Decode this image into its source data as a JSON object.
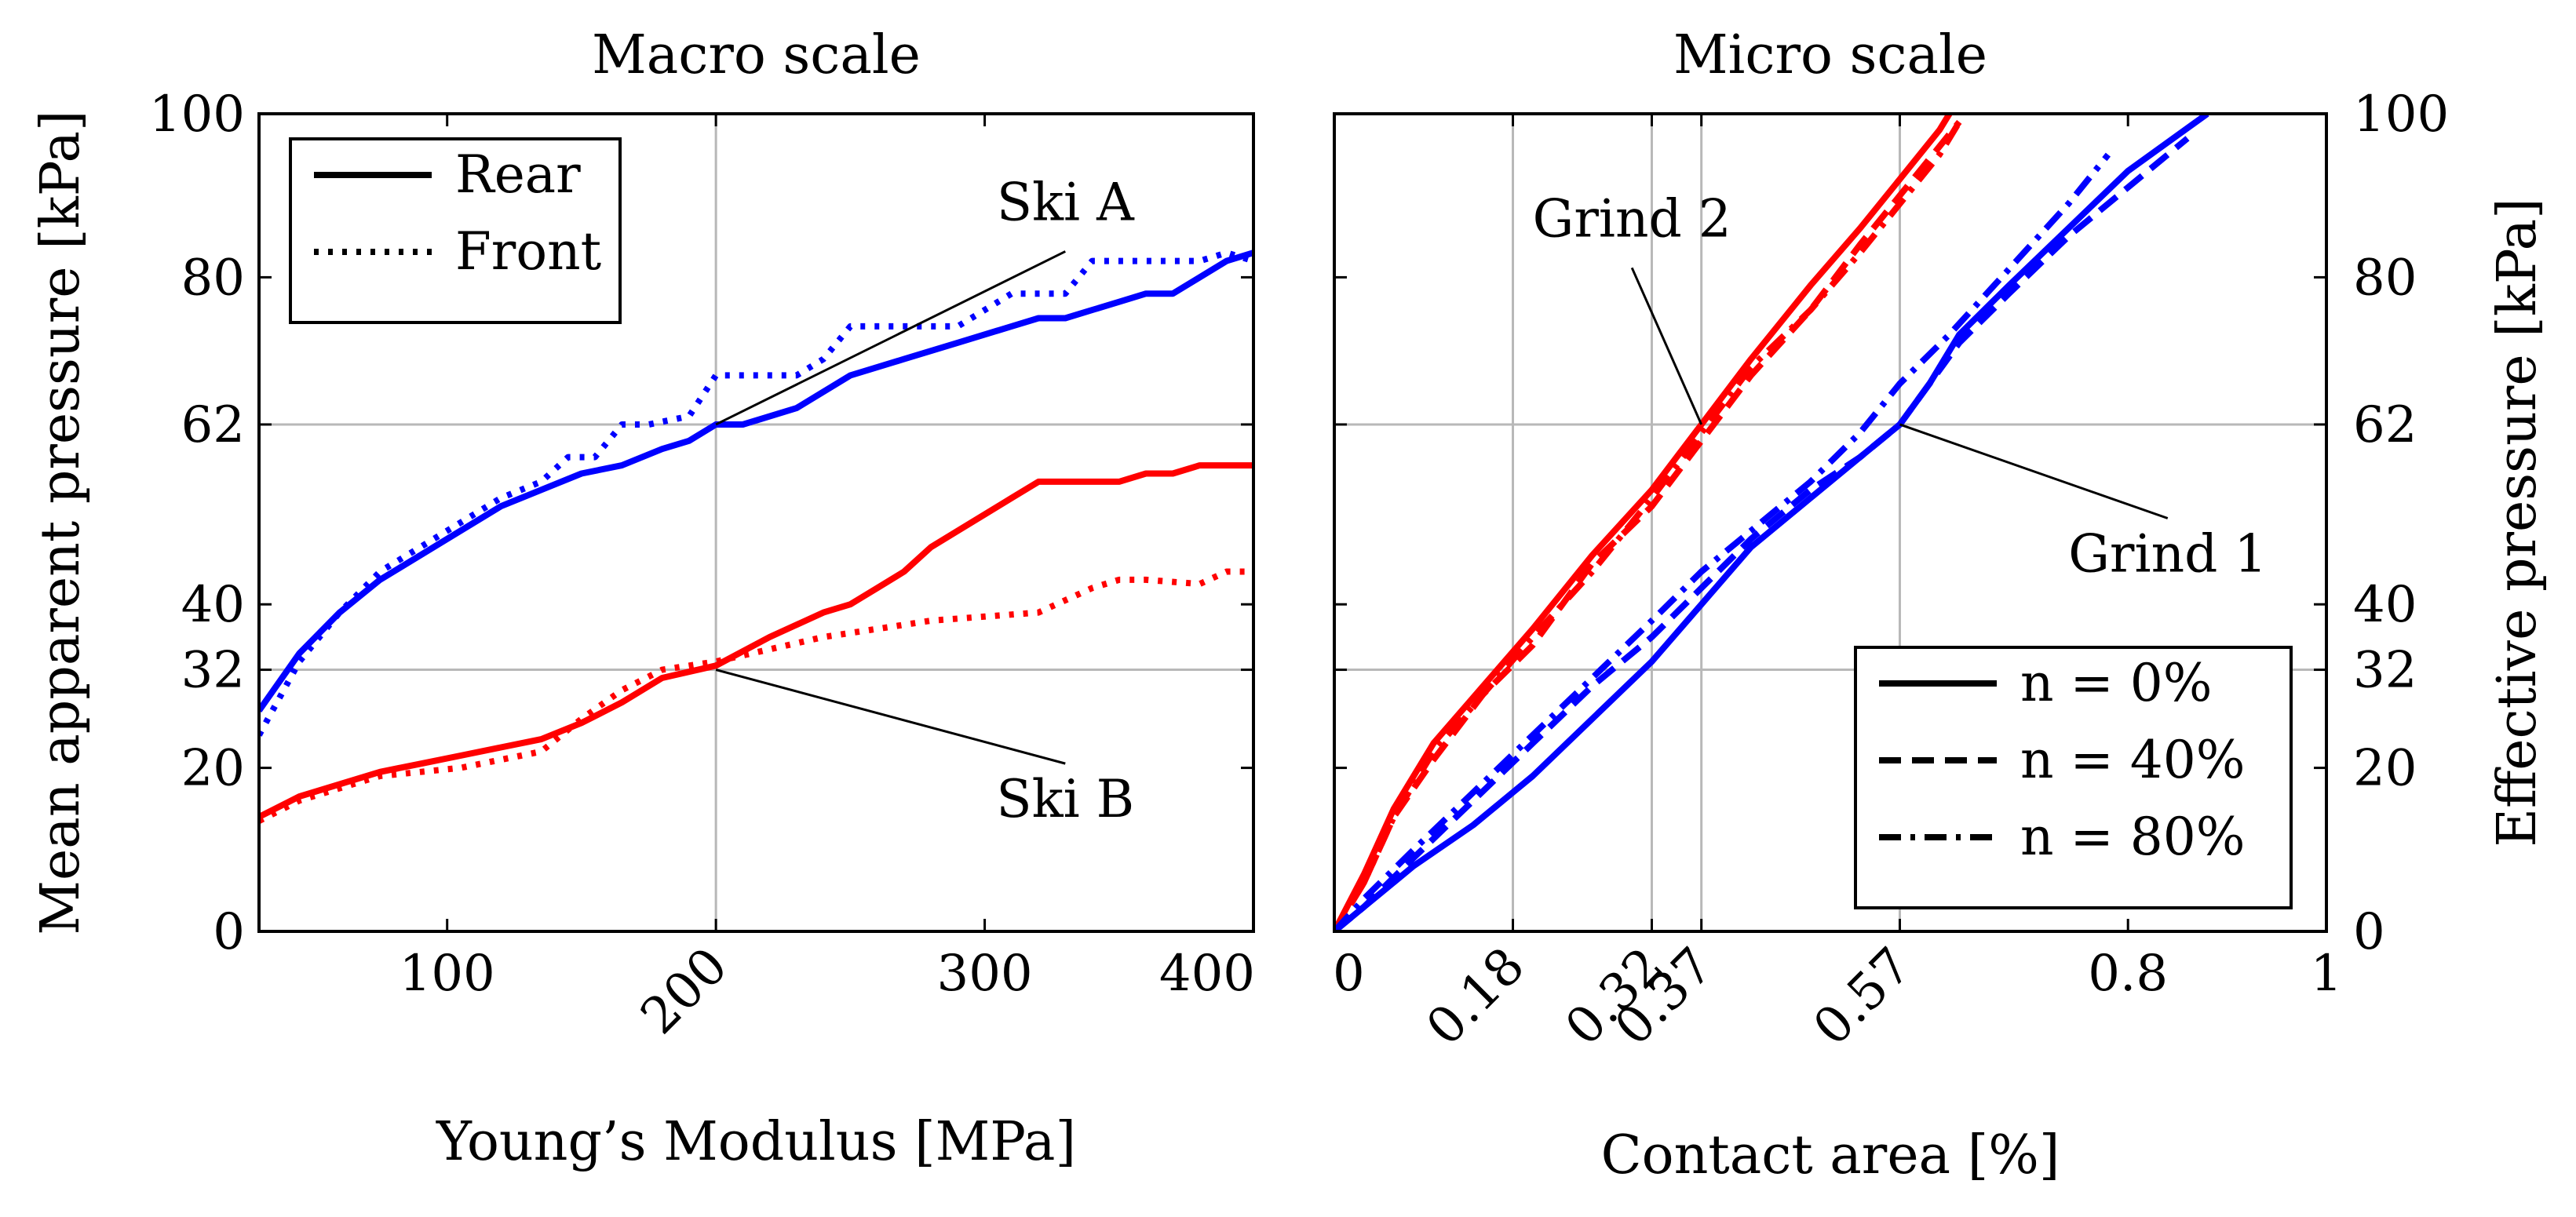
{
  "chart_data": [
    {
      "type": "line",
      "title": "Macro scale",
      "xlabel": "Young’s Modulus [MPa]",
      "ylabel": "Mean apparent pressure [kPa]",
      "xlim": [
        30,
        400
      ],
      "ylim": [
        0,
        100
      ],
      "xticks": [
        100,
        200,
        300,
        400
      ],
      "xtick_labels": [
        "100",
        "200",
        "300",
        "400"
      ],
      "yticks": [
        0,
        20,
        32,
        40,
        62,
        80,
        100
      ],
      "ytick_labels": [
        "0",
        "20",
        "32",
        "40",
        "62",
        "80",
        "100"
      ],
      "grid_x": [
        200
      ],
      "grid_y": [
        32,
        62
      ],
      "legend": {
        "position": "top-left",
        "entries": [
          {
            "label": "Rear",
            "style": "solid"
          },
          {
            "label": "Front",
            "style": "dotted"
          }
        ]
      },
      "annotations": [
        {
          "text": "Ski A",
          "x": 330,
          "y": 87,
          "point": [
            200,
            62
          ]
        },
        {
          "text": "Ski B",
          "x": 330,
          "y": 14,
          "point": [
            200,
            32
          ]
        }
      ],
      "series": [
        {
          "name": "Ski A Rear",
          "color": "#0000ff",
          "style": "solid",
          "x": [
            30,
            45,
            60,
            75,
            90,
            105,
            120,
            135,
            150,
            165,
            180,
            190,
            200,
            210,
            230,
            250,
            270,
            290,
            310,
            320,
            330,
            340,
            350,
            360,
            370,
            380,
            390,
            400
          ],
          "y": [
            27,
            34,
            39,
            43,
            46,
            49,
            52,
            54,
            56,
            57,
            59,
            60,
            62,
            62,
            64,
            68,
            70,
            72,
            74,
            75,
            75,
            76,
            77,
            78,
            78,
            80,
            82,
            83
          ]
        },
        {
          "name": "Ski A Front",
          "color": "#0000ff",
          "style": "dotted",
          "x": [
            30,
            45,
            60,
            75,
            90,
            105,
            120,
            135,
            145,
            155,
            165,
            175,
            190,
            200,
            210,
            230,
            240,
            250,
            270,
            290,
            310,
            320,
            330,
            340,
            350,
            360,
            380,
            390,
            400
          ],
          "y": [
            24,
            33,
            39,
            44,
            47,
            50,
            53,
            55,
            58,
            58,
            62,
            62,
            63,
            68,
            68,
            68,
            70,
            74,
            74,
            74,
            78,
            78,
            78,
            82,
            82,
            82,
            82,
            83,
            82
          ]
        },
        {
          "name": "Ski B Rear",
          "color": "#ff0000",
          "style": "solid",
          "x": [
            30,
            45,
            60,
            75,
            90,
            105,
            120,
            135,
            150,
            165,
            180,
            200,
            220,
            240,
            250,
            260,
            270,
            280,
            290,
            300,
            310,
            320,
            330,
            340,
            350,
            360,
            370,
            380,
            390,
            400
          ],
          "y": [
            14,
            16.5,
            18,
            19.5,
            20.5,
            21.5,
            22.5,
            23.5,
            25.5,
            28,
            31,
            32.5,
            36,
            39,
            40,
            42,
            44,
            47,
            49,
            51,
            53,
            55,
            55,
            55,
            55,
            56,
            56,
            57,
            57,
            57
          ]
        },
        {
          "name": "Ski B Front",
          "color": "#ff0000",
          "style": "dotted",
          "x": [
            30,
            45,
            60,
            75,
            90,
            105,
            120,
            135,
            150,
            165,
            180,
            200,
            220,
            240,
            260,
            280,
            300,
            320,
            340,
            350,
            360,
            380,
            390,
            400
          ],
          "y": [
            13.5,
            16,
            17.5,
            19,
            19.5,
            20,
            21,
            22,
            26,
            29.5,
            32,
            33,
            34.5,
            36,
            37,
            38,
            38.5,
            39,
            42,
            43,
            43,
            42.5,
            44,
            44
          ]
        }
      ]
    },
    {
      "type": "line",
      "title": "Micro scale",
      "xlabel": "Contact area [%]",
      "ylabel": "Effective pressure [kPa]",
      "xlim": [
        0,
        1
      ],
      "ylim": [
        0,
        100
      ],
      "xticks": [
        0,
        0.18,
        0.32,
        0.37,
        0.57,
        0.8,
        1
      ],
      "xtick_labels": [
        "0",
        "0.18",
        "0.32",
        "0.37",
        "0.57",
        "0.8",
        "1"
      ],
      "yticks": [
        0,
        20,
        32,
        40,
        62,
        80,
        100
      ],
      "ytick_labels": [
        "0",
        "20",
        "32",
        "40",
        "62",
        "80",
        "100"
      ],
      "grid_x": [
        0.18,
        0.32,
        0.37,
        0.57
      ],
      "grid_y": [
        32,
        62
      ],
      "legend": {
        "position": "bottom-right",
        "entries": [
          {
            "label": "n = 0%",
            "style": "solid"
          },
          {
            "label": "n = 40%",
            "style": "dashed"
          },
          {
            "label": "n = 80%",
            "style": "dashdot"
          }
        ]
      },
      "annotations": [
        {
          "text": "Grind 2",
          "x": 0.3,
          "y": 85,
          "point": [
            0.37,
            62
          ]
        },
        {
          "text": "Grind 1",
          "x": 0.84,
          "y": 44,
          "point": [
            0.57,
            62
          ]
        }
      ],
      "series": [
        {
          "name": "Grind 2, n = 0%",
          "color": "#ff0000",
          "style": "solid",
          "x": [
            0,
            0.03,
            0.06,
            0.1,
            0.15,
            0.2,
            0.26,
            0.32,
            0.37,
            0.42,
            0.48,
            0.53,
            0.57,
            0.61,
            0.62
          ],
          "y": [
            0,
            7,
            15,
            23,
            30,
            37,
            46,
            54,
            62,
            70,
            79,
            86,
            92,
            98,
            100
          ]
        },
        {
          "name": "Grind 2, n = 40%",
          "color": "#ff0000",
          "style": "dashed",
          "x": [
            0,
            0.03,
            0.06,
            0.1,
            0.15,
            0.2,
            0.26,
            0.32,
            0.37,
            0.42,
            0.48,
            0.53,
            0.57,
            0.61,
            0.63
          ],
          "y": [
            0,
            6,
            14,
            21,
            29,
            35,
            45,
            52,
            60,
            68,
            76,
            84,
            90,
            96,
            99
          ]
        },
        {
          "name": "Grind 2, n = 80%",
          "color": "#ff0000",
          "style": "dashdot",
          "x": [
            0,
            0.03,
            0.06,
            0.1,
            0.15,
            0.2,
            0.26,
            0.32,
            0.37,
            0.42,
            0.48,
            0.53,
            0.57,
            0.61,
            0.63
          ],
          "y": [
            0,
            6,
            14,
            22,
            29,
            36,
            44,
            53,
            61,
            69,
            76,
            83,
            89,
            95,
            99
          ]
        },
        {
          "name": "Grind 1, n = 0%",
          "color": "#0000ff",
          "style": "solid",
          "x": [
            0,
            0.03,
            0.08,
            0.14,
            0.2,
            0.26,
            0.32,
            0.37,
            0.42,
            0.48,
            0.53,
            0.57,
            0.6,
            0.63,
            0.68,
            0.74,
            0.8,
            0.88
          ],
          "y": [
            0,
            3,
            8,
            13,
            19,
            26,
            33,
            40,
            47,
            53,
            58,
            62,
            67,
            73,
            79,
            86,
            93,
            100
          ]
        },
        {
          "name": "Grind 1, n = 40%",
          "color": "#0000ff",
          "style": "dashed",
          "x": [
            0,
            0.03,
            0.08,
            0.14,
            0.2,
            0.26,
            0.32,
            0.37,
            0.42,
            0.48,
            0.53,
            0.57,
            0.6,
            0.63,
            0.68,
            0.74,
            0.8,
            0.86
          ],
          "y": [
            0,
            3,
            9,
            16,
            23,
            30,
            36,
            42,
            48,
            54,
            58,
            62,
            67,
            72,
            78,
            85,
            91,
            97
          ]
        },
        {
          "name": "Grind 1, n = 80%",
          "color": "#0000ff",
          "style": "dashdot",
          "x": [
            0,
            0.03,
            0.08,
            0.14,
            0.2,
            0.26,
            0.32,
            0.37,
            0.42,
            0.48,
            0.53,
            0.57,
            0.62,
            0.68,
            0.74,
            0.78
          ],
          "y": [
            0,
            4,
            10,
            17,
            24,
            31,
            38,
            44,
            49,
            55,
            61,
            67,
            73,
            81,
            89,
            95
          ]
        }
      ]
    }
  ]
}
